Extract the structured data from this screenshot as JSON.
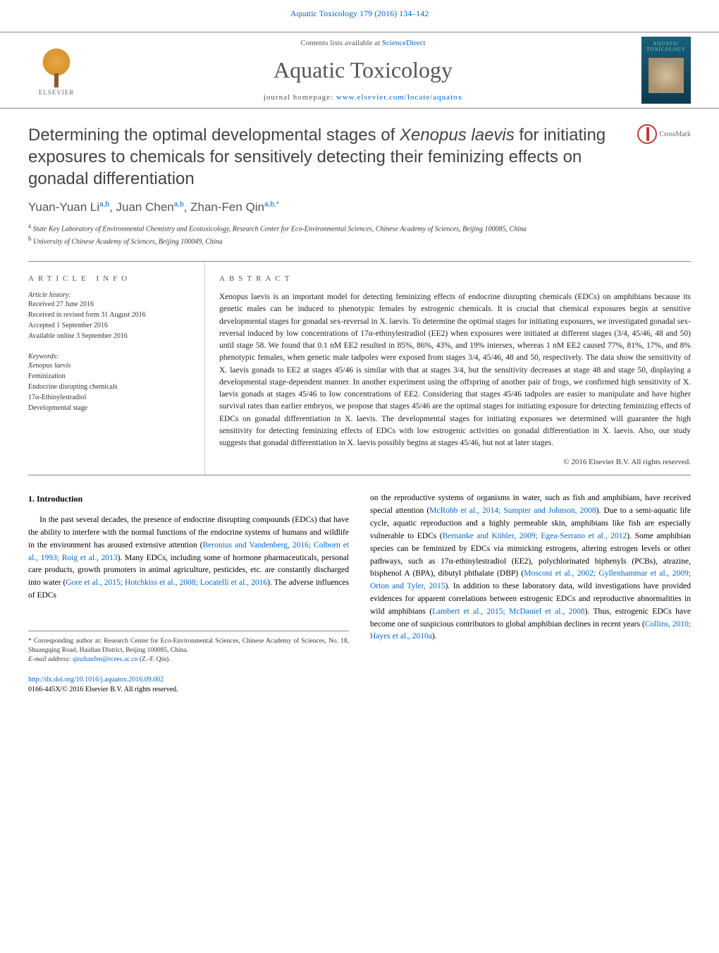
{
  "journal_ref": "Aquatic Toxicology 179 (2016) 134–142",
  "publisher": "ELSEVIER",
  "contents_text": "Contents lists available at ",
  "contents_link": "ScienceDirect",
  "journal_name": "Aquatic Toxicology",
  "homepage_text": "journal homepage: ",
  "homepage_link": "www.elsevier.com/locate/aquatox",
  "cover_line1": "AQUATIC",
  "cover_line2": "TOXICOLOGY",
  "crossmark": "CrossMark",
  "title_part1": "Determining the optimal developmental stages of ",
  "title_italic": "Xenopus laevis",
  "title_part2": " for initiating exposures to chemicals for sensitively detecting their feminizing effects on gonadal differentiation",
  "authors": {
    "a1_name": "Yuan-Yuan Li",
    "a1_aff": "a,b",
    "a2_name": "Juan Chen",
    "a2_aff": "a,b",
    "a3_name": "Zhan-Fen Qin",
    "a3_aff": "a,b,*"
  },
  "affiliations": {
    "a": "State Key Laboratory of Environmental Chemistry and Ecotoxicology, Research Center for Eco-Environmental Sciences, Chinese Academy of Sciences, Beijing 100085, China",
    "b": "University of Chinese Academy of Sciences, Beijing 100049, China"
  },
  "article_info_header": "article info",
  "abstract_header": "abstract",
  "history_label": "Article history:",
  "history": {
    "received": "Received 27 June 2016",
    "revised": "Received in revised form 31 August 2016",
    "accepted": "Accepted 1 September 2016",
    "online": "Available online 3 September 2016"
  },
  "keywords_label": "Keywords:",
  "keywords": [
    "Xenopus laevis",
    "Feminization",
    "Endocrine disrupting chemicals",
    "17α-Ethinylestradiol",
    "Developmental stage"
  ],
  "abstract": "Xenopus laevis is an important model for detecting feminizing effects of endocrine disrupting chemicals (EDCs) on amphibians because its genetic males can be induced to phenotypic females by estrogenic chemicals. It is crucial that chemical exposures begin at sensitive developmental stages for gonadal sex-reversal in X. laevis. To determine the optimal stages for initiating exposures, we investigated gonadal sex-reversal induced by low concentrations of 17α-ethinylestradiol (EE2) when exposures were initiated at different stages (3/4, 45/46, 48 and 50) until stage 58. We found that 0.1 nM EE2 resulted in 85%, 86%, 43%, and 19% intersex, whereas 1 nM EE2 caused 77%, 81%, 17%, and 8% phenotypic females, when genetic male tadpoles were exposed from stages 3/4, 45/46, 48 and 50, respectively. The data show the sensitivity of X. laevis gonads to EE2 at stages 45/46 is similar with that at stages 3/4, but the sensitivity decreases at stage 48 and stage 50, displaying a developmental stage-dependent manner. In another experiment using the offspring of another pair of frogs, we confirmed high sensitivity of X. laevis gonads at stages 45/46 to low concentrations of EE2. Considering that stages 45/46 tadpoles are easier to manipulate and have higher survival rates than earlier embryos, we propose that stages 45/46 are the optimal stages for initiating exposure for detecting feminizing effects of EDCs on gonadal differentiation in X. laevis. The developmental stages for initiating exposures we determined will guarantee the high sensitivity for detecting feminizing effects of EDCs with low estrogenic activities on gonadal differentiation in X. laevis. Also, our study suggests that gonadal differentiation in X. laevis possibly begins at stages 45/46, but not at later stages.",
  "copyright": "© 2016 Elsevier B.V. All rights reserved.",
  "intro_heading": "1. Introduction",
  "intro_para": "In the past several decades, the presence of endocrine disrupting compounds (EDCs) that have the ability to interfere with the normal functions of the endocrine systems of humans and wildlife in the environment has aroused extensive attention (",
  "intro_link1": "Beronius and Vandenberg, 2016; Colborn et al., 1993; Roig et al., 2013",
  "intro_mid1": "). Many EDCs, including some of hormone pharmaceuticals, personal care products, growth promoters in animal agriculture, pesticides, etc. are constantly discharged into water (",
  "intro_link2": "Gore et al., 2015; Hotchkiss et al., 2008; Locatelli et al., 2016",
  "intro_end1": "). The adverse influences of EDCs",
  "col2_start": "on the reproductive systems of organisms in water, such as fish and amphibians, have received special attention (",
  "col2_link1": "McRobb et al., 2014; Sumpter and Johnson, 2008",
  "col2_mid1": "). Due to a semi-aquatic life cycle, aquatic reproduction and a highly permeable skin, amphibians like fish are especially vulnerable to EDCs (",
  "col2_link2": "Bernanke and Köhler, 2009; Egea-Serrano et al., 2012",
  "col2_mid2": "). Some amphibian species can be feminized by EDCs via mimicking estrogens, altering estrogen levels or other pathways, such as 17α-ethinylestradiol (EE2), polychlorinated biphenyls (PCBs), atrazine, bisphenol A (BPA), dibutyl phthalate (DBP) (",
  "col2_link3": "Mosconi et al., 2002; Gyllenhammar et al., 2009; Orton and Tyler, 2015",
  "col2_mid3": "). In addition to these laboratory data, wild investigations have provided evidences for apparent correlations between estrogenic EDCs and reproductive abnormalities in wild amphibians (",
  "col2_link4": "Lambert et al., 2015; McDaniel et al., 2008",
  "col2_mid4": "). Thus, estrogenic EDCs have become one of suspicious contributors to global amphibian declines in recent years (",
  "col2_link5": "Collins, 2010; Hayes et al., 2010a",
  "col2_end": ").",
  "footnote_corr": "* Corresponding author at: Research Center for Eco-Environmental Sciences, Chinese Academy of Sciences, No. 18, Shuangqing Road, Haidian District, Beijing 100085, China.",
  "footnote_email_label": "E-mail address: ",
  "footnote_email": "qinzhanfen@rcees.ac.cn",
  "footnote_email_name": " (Z.-F. Qin).",
  "doi_link": "http://dx.doi.org/10.1016/j.aquatox.2016.09.002",
  "issn_line": "0166-445X/© 2016 Elsevier B.V. All rights reserved.",
  "colors": {
    "link": "#0066cc",
    "text": "#222222",
    "muted": "#555555",
    "cover_bg": "#1a5f7a",
    "cover_text": "#7dd3c0"
  },
  "typography": {
    "title_fontsize": 24,
    "journal_fontsize": 32,
    "body_fontsize": 11.5,
    "authors_fontsize": 17
  }
}
